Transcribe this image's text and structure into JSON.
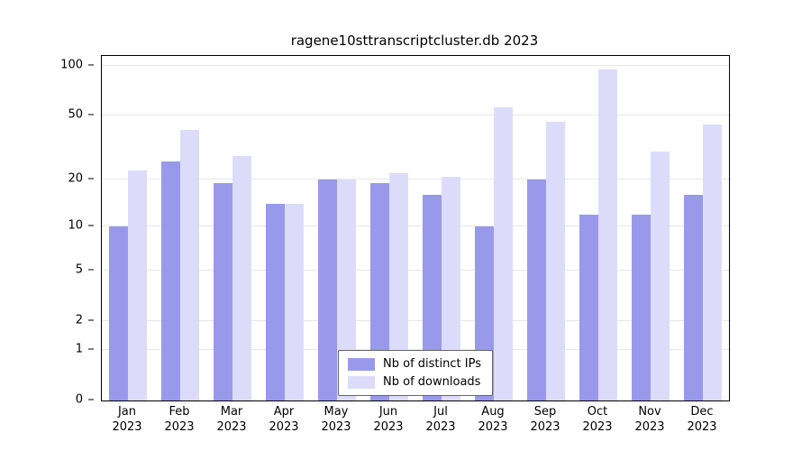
{
  "chart_data": {
    "type": "bar",
    "title": "ragene10sttranscriptcluster.db 2023",
    "categories": [
      "Jan",
      "Feb",
      "Mar",
      "Apr",
      "May",
      "Jun",
      "Jul",
      "Aug",
      "Sep",
      "Oct",
      "Nov",
      "Dec"
    ],
    "year": "2023",
    "series": [
      {
        "name": "Nb of distinct IPs",
        "color": "#9999ec",
        "values": [
          10,
          26,
          19,
          14,
          20,
          19,
          16,
          10,
          20,
          12,
          12,
          16
        ]
      },
      {
        "name": "Nb of downloads",
        "color": "#dcdcfa",
        "values": [
          23,
          41,
          28,
          14,
          20,
          22,
          21,
          56,
          46,
          95,
          30,
          44
        ]
      }
    ],
    "yticks": [
      0,
      1,
      2,
      5,
      10,
      20,
      50,
      100
    ],
    "scale": "log1p",
    "ymax": 115,
    "grid": "horizontal",
    "legend_position": "bottom-center"
  },
  "colors": {
    "background": "#ffffff",
    "axis": "#000000",
    "gridline": "#e8e8e8",
    "text": "#000000"
  }
}
